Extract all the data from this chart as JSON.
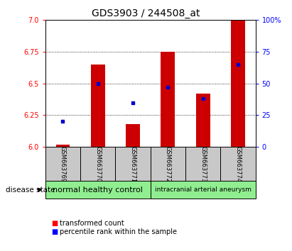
{
  "title": "GDS3903 / 244508_at",
  "samples": [
    "GSM663769",
    "GSM663770",
    "GSM663771",
    "GSM663772",
    "GSM663773",
    "GSM663774"
  ],
  "transformed_count": [
    6.02,
    6.65,
    6.18,
    6.75,
    6.42,
    7.0
  ],
  "percentile_rank": [
    20,
    50,
    35,
    47,
    38,
    65
  ],
  "ylim_left": [
    6.0,
    7.0
  ],
  "ylim_right": [
    0,
    100
  ],
  "yticks_left": [
    6.0,
    6.25,
    6.5,
    6.75,
    7.0
  ],
  "yticks_right": [
    0,
    25,
    50,
    75,
    100
  ],
  "bar_color": "#cc0000",
  "dot_color": "#0000cc",
  "bar_width": 0.4,
  "group_box_color": "#90ee90",
  "sample_box_color": "#c8c8c8",
  "legend_tc_label": "transformed count",
  "legend_pr_label": "percentile rank within the sample",
  "disease_state_label": "disease state",
  "title_fontsize": 10,
  "tick_fontsize": 7,
  "sample_fontsize": 6,
  "group1_label": "normal healthy control",
  "group2_label": "intracranial arterial aneurysm",
  "group1_fontsize": 8,
  "group2_fontsize": 6.5
}
